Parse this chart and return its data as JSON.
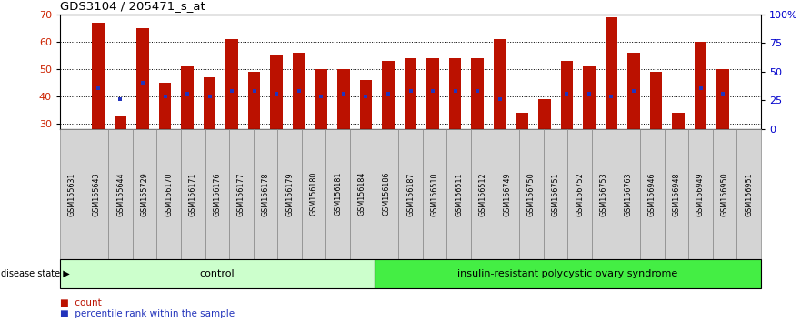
{
  "title": "GDS3104 / 205471_s_at",
  "categories": [
    "GSM155631",
    "GSM155643",
    "GSM155644",
    "GSM155729",
    "GSM156170",
    "GSM156171",
    "GSM156176",
    "GSM156177",
    "GSM156178",
    "GSM156179",
    "GSM156180",
    "GSM156181",
    "GSM156184",
    "GSM156186",
    "GSM156187",
    "GSM156510",
    "GSM156511",
    "GSM156512",
    "GSM156749",
    "GSM156750",
    "GSM156751",
    "GSM156752",
    "GSM156753",
    "GSM156763",
    "GSM156946",
    "GSM156948",
    "GSM156949",
    "GSM156950",
    "GSM156951"
  ],
  "bar_values": [
    67,
    33,
    65,
    45,
    51,
    47,
    61,
    49,
    55,
    56,
    50,
    50,
    46,
    53,
    54,
    54,
    54,
    54,
    61,
    34,
    39,
    53,
    51,
    69,
    56,
    49,
    34,
    60,
    50
  ],
  "blue_values": [
    43,
    39,
    45,
    40,
    41,
    40,
    42,
    42,
    41,
    42,
    40,
    41,
    40,
    41,
    42,
    42,
    42,
    42,
    39,
    23,
    24,
    41,
    41,
    40,
    42,
    23,
    22,
    43,
    41
  ],
  "control_count": 13,
  "disease_count": 16,
  "ylim_left": [
    28,
    70
  ],
  "ylim_right": [
    0,
    100
  ],
  "yticks_left": [
    30,
    40,
    50,
    60,
    70
  ],
  "yticks_right": [
    0,
    25,
    50,
    75,
    100
  ],
  "yticklabels_right": [
    "0",
    "25",
    "50",
    "75",
    "100%"
  ],
  "bar_color": "#bb1100",
  "blue_color": "#2233bb",
  "control_color": "#ccffcc",
  "disease_color": "#44ee44",
  "ticklabel_bg": "#d4d4d4",
  "ticklabel_edge": "#888888",
  "control_label": "control",
  "disease_label": "insulin-resistant polycystic ovary syndrome",
  "disease_state_label": "disease state",
  "legend_count": "count",
  "legend_percentile": "percentile rank within the sample",
  "bar_width": 0.55
}
